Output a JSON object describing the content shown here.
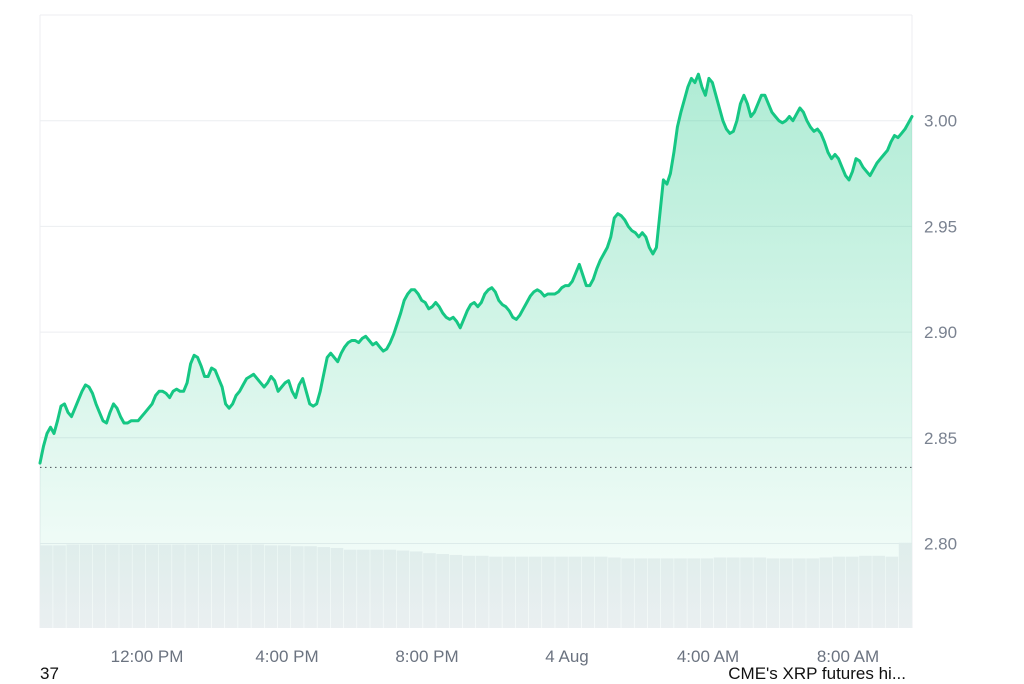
{
  "chart_data": {
    "type": "area",
    "x_ticks": [
      "12:00 PM",
      "4:00 PM",
      "8:00 PM",
      "4 Aug",
      "4:00 AM",
      "8:00 AM"
    ],
    "y_ticks": [
      "2.80",
      "2.85",
      "2.90",
      "2.95",
      "3.00"
    ],
    "ylim": [
      2.76,
      3.05
    ],
    "reference_line": 2.836,
    "grid": true,
    "line_color": "#16c784",
    "series": [
      {
        "values": [
          2.838,
          2.846,
          2.852,
          2.855,
          2.852,
          2.858,
          2.865,
          2.866,
          2.862,
          2.86,
          2.864,
          2.868,
          2.872,
          2.875,
          2.874,
          2.871,
          2.866,
          2.862,
          2.858,
          2.857,
          2.862,
          2.866,
          2.864,
          2.86,
          2.857,
          2.857,
          2.858,
          2.858,
          2.858,
          2.86,
          2.862,
          2.864,
          2.866,
          2.87,
          2.872,
          2.872,
          2.871,
          2.869,
          2.872,
          2.873,
          2.872,
          2.872,
          2.876,
          2.885,
          2.889,
          2.888,
          2.884,
          2.879,
          2.879,
          2.883,
          2.882,
          2.878,
          2.874,
          2.866,
          2.864,
          2.866,
          2.87,
          2.872,
          2.875,
          2.878,
          2.879,
          2.88,
          2.878,
          2.876,
          2.874,
          2.876,
          2.879,
          2.877,
          2.872,
          2.874,
          2.876,
          2.877,
          2.872,
          2.869,
          2.875,
          2.878,
          2.872,
          2.866,
          2.865,
          2.866,
          2.872,
          2.88,
          2.888,
          2.89,
          2.888,
          2.886,
          2.89,
          2.893,
          2.895,
          2.896,
          2.896,
          2.895,
          2.897,
          2.898,
          2.896,
          2.894,
          2.895,
          2.893,
          2.891,
          2.892,
          2.895,
          2.899,
          2.904,
          2.909,
          2.915,
          2.918,
          2.92,
          2.92,
          2.918,
          2.915,
          2.914,
          2.911,
          2.912,
          2.914,
          2.912,
          2.909,
          2.907,
          2.906,
          2.907,
          2.905,
          2.902,
          2.906,
          2.91,
          2.913,
          2.914,
          2.912,
          2.914,
          2.918,
          2.92,
          2.921,
          2.919,
          2.915,
          2.913,
          2.912,
          2.91,
          2.907,
          2.906,
          2.908,
          2.911,
          2.914,
          2.917,
          2.919,
          2.92,
          2.919,
          2.917,
          2.918,
          2.918,
          2.918,
          2.919,
          2.921,
          2.922,
          2.922,
          2.924,
          2.928,
          2.932,
          2.927,
          2.922,
          2.922,
          2.925,
          2.93,
          2.934,
          2.937,
          2.94,
          2.945,
          2.954,
          2.956,
          2.955,
          2.953,
          2.95,
          2.948,
          2.947,
          2.945,
          2.947,
          2.945,
          2.94,
          2.937,
          2.94,
          2.956,
          2.972,
          2.97,
          2.975,
          2.985,
          2.997,
          3.004,
          3.01,
          3.016,
          3.02,
          3.018,
          3.022,
          3.016,
          3.012,
          3.02,
          3.018,
          3.012,
          3.006,
          3.0,
          2.996,
          2.994,
          2.995,
          3.0,
          3.008,
          3.012,
          3.008,
          3.002,
          3.004,
          3.008,
          3.012,
          3.012,
          3.008,
          3.004,
          3.002,
          3.0,
          2.999,
          3.0,
          3.002,
          3.0,
          3.003,
          3.006,
          3.004,
          3.0,
          2.997,
          2.995,
          2.996,
          2.994,
          2.99,
          2.985,
          2.982,
          2.984,
          2.982,
          2.978,
          2.974,
          2.972,
          2.976,
          2.982,
          2.981,
          2.978,
          2.976,
          2.974,
          2.977,
          2.98,
          2.982,
          2.984,
          2.986,
          2.99,
          2.993,
          2.992,
          2.994,
          2.996,
          2.999,
          3.002
        ]
      }
    ],
    "volume": {
      "color": "#eef0f3",
      "values": [
        0.95,
        0.95,
        0.96,
        0.96,
        0.96,
        0.96,
        0.96,
        0.96,
        0.96,
        0.96,
        0.96,
        0.96,
        0.96,
        0.96,
        0.96,
        0.96,
        0.96,
        0.95,
        0.95,
        0.94,
        0.94,
        0.93,
        0.92,
        0.9,
        0.9,
        0.9,
        0.9,
        0.89,
        0.88,
        0.86,
        0.85,
        0.84,
        0.83,
        0.83,
        0.82,
        0.82,
        0.82,
        0.82,
        0.82,
        0.82,
        0.82,
        0.82,
        0.82,
        0.81,
        0.8,
        0.8,
        0.8,
        0.8,
        0.8,
        0.8,
        0.8,
        0.81,
        0.81,
        0.81,
        0.81,
        0.8,
        0.8,
        0.8,
        0.8,
        0.81,
        0.82,
        0.82,
        0.83,
        0.83,
        0.82,
        0.98
      ]
    }
  },
  "footer": {
    "left_text": "37",
    "right_text": "CME's XRP futures hi..."
  }
}
